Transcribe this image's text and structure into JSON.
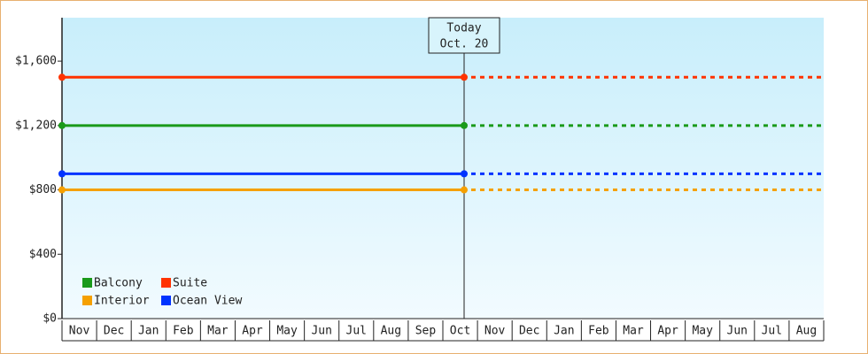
{
  "chart_data": {
    "type": "line",
    "annotation": [
      "Today",
      "Oct. 20"
    ],
    "categories": [
      "Nov",
      "Dec",
      "Jan",
      "Feb",
      "Mar",
      "Apr",
      "May",
      "Jun",
      "Jul",
      "Aug",
      "Sep",
      "Oct",
      "Nov",
      "Dec",
      "Jan",
      "Feb",
      "Mar",
      "Apr",
      "May",
      "Jun",
      "Jul",
      "Aug"
    ],
    "series": [
      {
        "name": "Balcony",
        "color": "#1a9a1a",
        "value": 1200
      },
      {
        "name": "Suite",
        "color": "#ff3300",
        "value": 1500
      },
      {
        "name": "Interior",
        "color": "#f5a000",
        "value": 800
      },
      {
        "name": "Ocean View",
        "color": "#0033ff",
        "value": 900
      }
    ],
    "ylim": [
      0,
      1870
    ],
    "yticks": [
      {
        "value": 0,
        "label": "$0"
      },
      {
        "value": 400,
        "label": "$400"
      },
      {
        "value": 800,
        "label": "$800"
      },
      {
        "value": 1200,
        "label": "$1,200"
      },
      {
        "value": 1600,
        "label": "$1,600"
      }
    ]
  }
}
